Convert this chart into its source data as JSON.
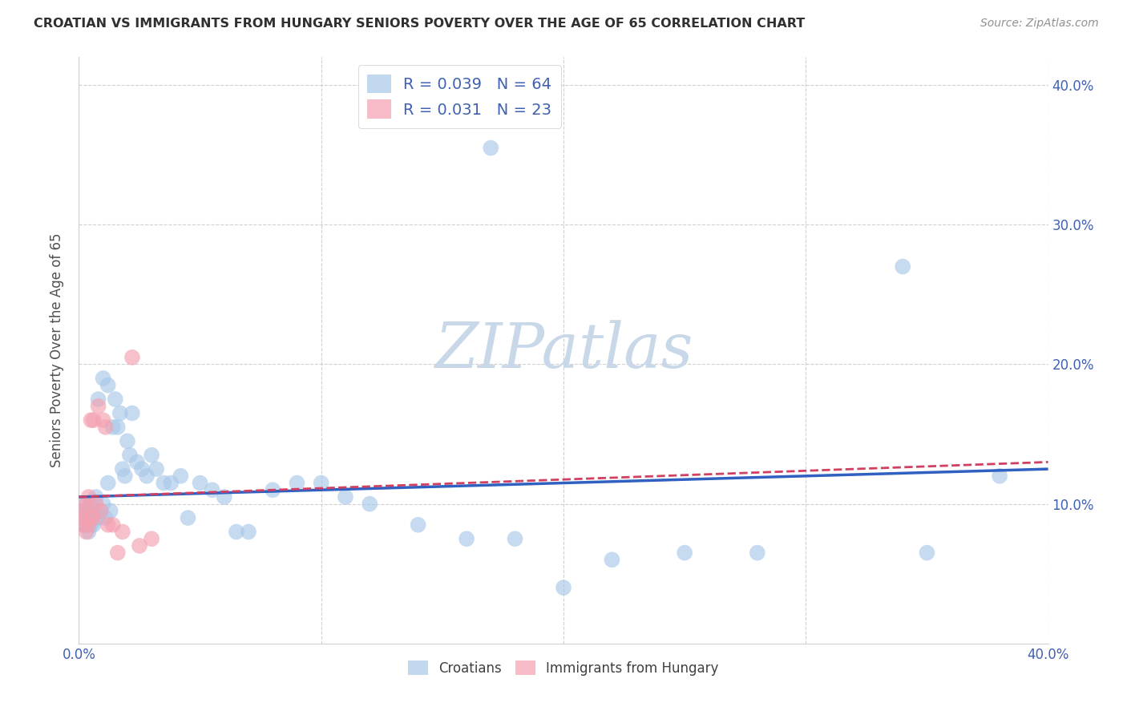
{
  "title": "CROATIAN VS IMMIGRANTS FROM HUNGARY SENIORS POVERTY OVER THE AGE OF 65 CORRELATION CHART",
  "source": "Source: ZipAtlas.com",
  "ylabel": "Seniors Poverty Over the Age of 65",
  "xlim": [
    0.0,
    0.4
  ],
  "ylim": [
    0.0,
    0.42
  ],
  "xticks": [
    0.0,
    0.1,
    0.2,
    0.3,
    0.4
  ],
  "yticks": [
    0.1,
    0.2,
    0.3,
    0.4
  ],
  "ytick_labels_right": [
    "10.0%",
    "20.0%",
    "30.0%",
    "40.0%"
  ],
  "xtick_labels": [
    "0.0%",
    "",
    "",
    "",
    "40.0%"
  ],
  "legend_labels": [
    "Croatians",
    "Immigrants from Hungary"
  ],
  "croatian_R": "0.039",
  "croatian_N": "64",
  "hungary_R": "0.031",
  "hungary_N": "23",
  "blue_scatter_color": "#a8c8e8",
  "pink_scatter_color": "#f4a0b0",
  "blue_line_color": "#3060c0",
  "pink_line_color": "#d04060",
  "watermark_color": "#c8d8e8",
  "background_color": "#ffffff",
  "grid_color": "#d0d0d0",
  "title_color": "#303030",
  "source_color": "#909090",
  "label_color": "#505050",
  "tick_color": "#4060b0",
  "croatian_x": [
    0.001,
    0.002,
    0.002,
    0.003,
    0.003,
    0.003,
    0.004,
    0.004,
    0.004,
    0.005,
    0.005,
    0.005,
    0.006,
    0.006,
    0.007,
    0.007,
    0.008,
    0.008,
    0.009,
    0.01,
    0.01,
    0.011,
    0.012,
    0.012,
    0.013,
    0.014,
    0.015,
    0.016,
    0.017,
    0.018,
    0.019,
    0.02,
    0.021,
    0.022,
    0.024,
    0.026,
    0.028,
    0.03,
    0.032,
    0.035,
    0.038,
    0.042,
    0.045,
    0.05,
    0.055,
    0.06,
    0.065,
    0.07,
    0.08,
    0.09,
    0.1,
    0.11,
    0.12,
    0.14,
    0.16,
    0.18,
    0.2,
    0.22,
    0.25,
    0.28,
    0.17,
    0.38,
    0.35,
    0.34
  ],
  "croatian_y": [
    0.095,
    0.1,
    0.085,
    0.09,
    0.095,
    0.085,
    0.09,
    0.08,
    0.095,
    0.09,
    0.085,
    0.1,
    0.095,
    0.085,
    0.09,
    0.105,
    0.175,
    0.09,
    0.095,
    0.1,
    0.19,
    0.09,
    0.185,
    0.115,
    0.095,
    0.155,
    0.175,
    0.155,
    0.165,
    0.125,
    0.12,
    0.145,
    0.135,
    0.165,
    0.13,
    0.125,
    0.12,
    0.135,
    0.125,
    0.115,
    0.115,
    0.12,
    0.09,
    0.115,
    0.11,
    0.105,
    0.08,
    0.08,
    0.11,
    0.115,
    0.115,
    0.105,
    0.1,
    0.085,
    0.075,
    0.075,
    0.04,
    0.06,
    0.065,
    0.065,
    0.355,
    0.12,
    0.065,
    0.27
  ],
  "hungary_x": [
    0.001,
    0.002,
    0.002,
    0.003,
    0.003,
    0.004,
    0.004,
    0.005,
    0.005,
    0.006,
    0.006,
    0.007,
    0.008,
    0.009,
    0.01,
    0.011,
    0.012,
    0.014,
    0.016,
    0.018,
    0.022,
    0.025,
    0.03
  ],
  "hungary_y": [
    0.09,
    0.095,
    0.085,
    0.1,
    0.08,
    0.105,
    0.085,
    0.09,
    0.16,
    0.16,
    0.09,
    0.1,
    0.17,
    0.095,
    0.16,
    0.155,
    0.085,
    0.085,
    0.065,
    0.08,
    0.205,
    0.07,
    0.075
  ]
}
